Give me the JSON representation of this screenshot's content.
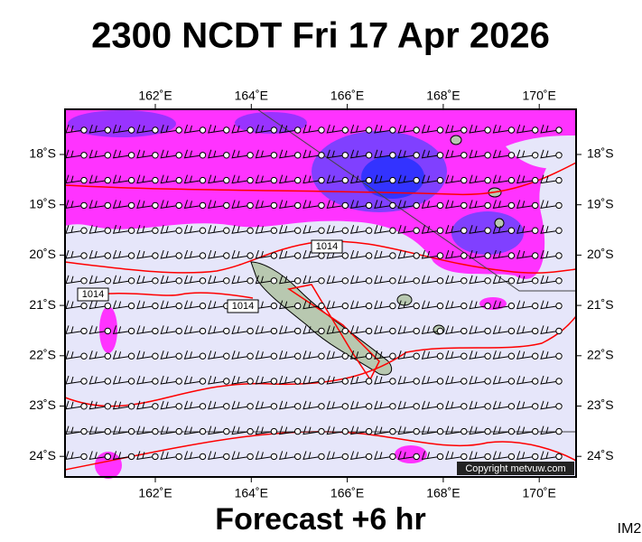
{
  "title": "2300 NCDT Fri 17 Apr 2026",
  "footer": "Forecast +6 hr",
  "corner_label": "IM2",
  "copyright": "Copyright metvuw.com",
  "lon_labels": [
    "162˚E",
    "164˚E",
    "166˚E",
    "168˚E",
    "170˚E"
  ],
  "lat_labels": [
    "18˚S",
    "19˚S",
    "20˚S",
    "21˚S",
    "22˚S",
    "23˚S",
    "24˚S"
  ],
  "isobar_labels": [
    "1014",
    "1014",
    "1014"
  ]
}
